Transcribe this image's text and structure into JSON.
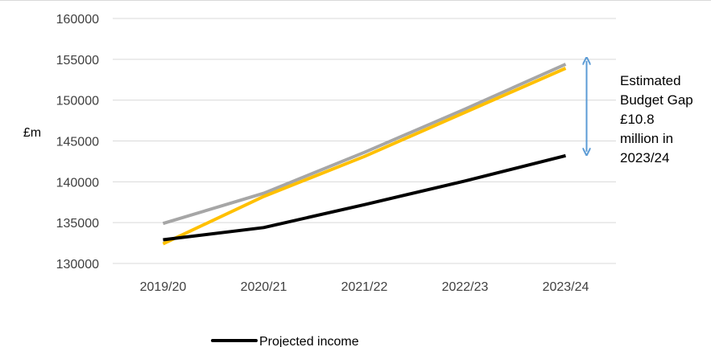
{
  "chart_data": {
    "type": "line",
    "categories": [
      "2019/20",
      "2020/21",
      "2021/22",
      "2022/23",
      "2023/24"
    ],
    "ylabel": "£m",
    "ylim": [
      130000,
      160000
    ],
    "y_ticks": [
      "130000",
      "135000",
      "140000",
      "145000",
      "150000",
      "155000",
      "160000"
    ],
    "grid": true,
    "series": [
      {
        "name": "Projected income",
        "color": "#000000",
        "values": [
          132900,
          134400,
          137200,
          140100,
          143200
        ]
      },
      {
        "name": "",
        "color": "#a6a6a6",
        "values": [
          134900,
          138600,
          143600,
          148900,
          154400
        ]
      },
      {
        "name": "",
        "color": "#ffc000",
        "values": [
          132400,
          138200,
          143100,
          148500,
          153900
        ]
      }
    ],
    "legend": {
      "placement": "bottom",
      "visible_entries": [
        "Projected income"
      ]
    },
    "annotation": {
      "lines": [
        "Estimated",
        "Budget Gap",
        "£10.8",
        "million in",
        "2023/24"
      ],
      "arrow_color": "#5b9bd5",
      "arrow_at_category": "2023/24",
      "arrow_from_value": 143200,
      "arrow_to_value": 155000
    }
  }
}
